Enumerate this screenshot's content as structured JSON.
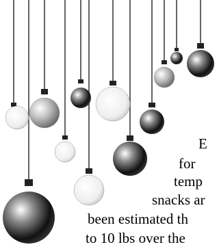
{
  "text_lines": [
    "E",
    "for",
    "temp",
    "snacks ar",
    "been estimated th",
    "to 10 lbs over the"
  ]
}
